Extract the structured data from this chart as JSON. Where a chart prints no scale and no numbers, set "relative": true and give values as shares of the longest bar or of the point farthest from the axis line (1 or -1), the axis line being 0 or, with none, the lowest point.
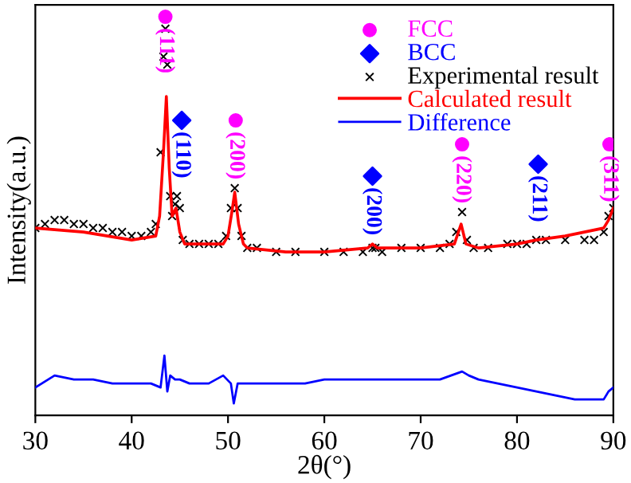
{
  "chart_data": {
    "type": "line",
    "relative": true,
    "xlabel": "2θ(°)",
    "ylabel": "Intensity(a.u.)",
    "xlim": [
      30,
      90
    ],
    "xticks": [
      30,
      40,
      50,
      60,
      70,
      80,
      90
    ],
    "tick_labels": "x",
    "grid": false,
    "legend": "top right",
    "series": [
      {
        "name": "FCC",
        "type": "scatter",
        "marker": "circle",
        "color": "#ff00ff",
        "x": [
          43.5,
          50.8,
          74.3,
          89.6
        ],
        "values": [
          1.0,
          0.74,
          0.68,
          0.68
        ]
      },
      {
        "name": "BCC",
        "type": "scatter",
        "marker": "diamond",
        "color": "#0000ff",
        "x": [
          45.2,
          65.0,
          82.2
        ],
        "values": [
          0.74,
          0.6,
          0.63
        ]
      },
      {
        "name": "Experimental result",
        "type": "scatter",
        "marker": "cross",
        "color": "#000000",
        "x": [
          30,
          31,
          32,
          33,
          34,
          35,
          36,
          37,
          38,
          39,
          40,
          41,
          42,
          42.5,
          43,
          43.3,
          43.5,
          43.7,
          44,
          44.2,
          44.5,
          44.7,
          45,
          45.3,
          46,
          47,
          48,
          49,
          49.8,
          50.3,
          50.7,
          51.0,
          51.4,
          52,
          53,
          55,
          57,
          60,
          62,
          64,
          65,
          65.3,
          66,
          68,
          70,
          72,
          73,
          73.7,
          74.3,
          74.8,
          75.5,
          77,
          79,
          80,
          81,
          82,
          83,
          85,
          87,
          88,
          89,
          89.5,
          90
        ],
        "values": [
          0.47,
          0.48,
          0.49,
          0.49,
          0.48,
          0.48,
          0.47,
          0.47,
          0.46,
          0.46,
          0.45,
          0.45,
          0.46,
          0.48,
          0.66,
          0.9,
          0.97,
          0.88,
          0.55,
          0.5,
          0.53,
          0.55,
          0.52,
          0.44,
          0.43,
          0.43,
          0.43,
          0.43,
          0.45,
          0.52,
          0.57,
          0.52,
          0.45,
          0.42,
          0.42,
          0.41,
          0.41,
          0.41,
          0.41,
          0.41,
          0.42,
          0.42,
          0.41,
          0.42,
          0.42,
          0.42,
          0.43,
          0.46,
          0.51,
          0.44,
          0.42,
          0.42,
          0.43,
          0.43,
          0.43,
          0.44,
          0.44,
          0.44,
          0.44,
          0.44,
          0.46,
          0.5,
          0.52
        ]
      },
      {
        "name": "Calculated result",
        "color": "#ff0000",
        "x": [
          30,
          35,
          40,
          42.5,
          42.9,
          43.3,
          43.6,
          43.9,
          44.2,
          44.6,
          45.0,
          45.5,
          47,
          49.5,
          50.0,
          50.4,
          50.7,
          51.1,
          51.6,
          52,
          56,
          60,
          64.5,
          65,
          65.5,
          70,
          73.5,
          74.2,
          74.7,
          76,
          80,
          82,
          85,
          89,
          89.5,
          90
        ],
        "values": [
          0.47,
          0.46,
          0.44,
          0.45,
          0.5,
          0.66,
          0.8,
          0.62,
          0.5,
          0.52,
          0.46,
          0.43,
          0.43,
          0.43,
          0.45,
          0.51,
          0.56,
          0.48,
          0.43,
          0.42,
          0.41,
          0.41,
          0.42,
          0.43,
          0.42,
          0.42,
          0.43,
          0.48,
          0.43,
          0.42,
          0.43,
          0.44,
          0.45,
          0.47,
          0.49,
          0.52
        ]
      },
      {
        "name": "Difference",
        "color": "#0000ff",
        "x": [
          30,
          32,
          34,
          36,
          38,
          40,
          42,
          43,
          43.4,
          43.7,
          44,
          44.5,
          45,
          46,
          48,
          49.5,
          50.3,
          50.6,
          51,
          53,
          55,
          58,
          60,
          63,
          65,
          68,
          70,
          72,
          74.3,
          75,
          76,
          78,
          80,
          82,
          84,
          86,
          88,
          89,
          89.5,
          90
        ],
        "values": [
          0.07,
          0.1,
          0.09,
          0.09,
          0.08,
          0.08,
          0.08,
          0.07,
          0.15,
          0.06,
          0.1,
          0.09,
          0.09,
          0.08,
          0.08,
          0.1,
          0.08,
          0.03,
          0.08,
          0.08,
          0.08,
          0.08,
          0.09,
          0.09,
          0.09,
          0.09,
          0.09,
          0.09,
          0.11,
          0.1,
          0.09,
          0.08,
          0.07,
          0.06,
          0.05,
          0.04,
          0.04,
          0.04,
          0.06,
          0.07
        ]
      }
    ],
    "annotations": [
      {
        "text": "(111)",
        "x": 43.5,
        "y": 1.0
      },
      {
        "text": "(110)",
        "x": 45.2,
        "y": 0.74
      },
      {
        "text": "(200)",
        "x": 50.8,
        "y": 0.74
      },
      {
        "text": "(200)",
        "x": 65.0,
        "y": 0.6
      },
      {
        "text": "(220)",
        "x": 74.3,
        "y": 0.68
      },
      {
        "text": "(211)",
        "x": 82.2,
        "y": 0.63
      },
      {
        "text": "(311)",
        "x": 89.6,
        "y": 0.68
      }
    ]
  }
}
